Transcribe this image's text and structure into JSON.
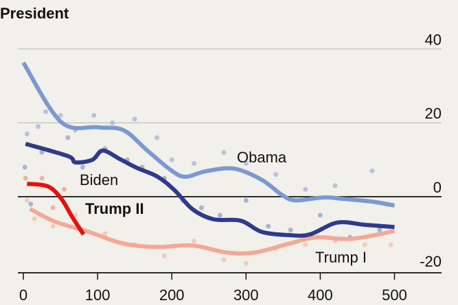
{
  "chart_data": {
    "type": "line",
    "title": "President",
    "xlabel": "",
    "ylabel": "",
    "xlim": [
      0,
      550
    ],
    "ylim": [
      -20,
      40
    ],
    "x_ticks": [
      "0",
      "100",
      "200",
      "300",
      "400",
      "500"
    ],
    "y_ticks": [
      "40",
      "20",
      "0",
      "-20"
    ],
    "grid": true,
    "series": [
      {
        "name": "Obama",
        "label": "Obama",
        "color": "#7b98d0",
        "dot_color": "#aab6dc",
        "x": [
          0,
          51,
          100,
          135,
          167,
          200,
          219,
          246,
          284,
          321,
          349,
          367,
          404,
          432,
          469,
          500
        ],
        "y": [
          36.3,
          20.2,
          18.8,
          18,
          12.5,
          7,
          5.4,
          6.9,
          7.6,
          4.6,
          0.4,
          -1,
          -0.2,
          -0.6,
          -1.3,
          -2.4
        ],
        "points": [
          [
            5,
            17
          ],
          [
            20,
            19
          ],
          [
            30,
            23
          ],
          [
            50,
            22
          ],
          [
            70,
            18
          ],
          [
            95,
            22
          ],
          [
            120,
            20
          ],
          [
            150,
            21
          ],
          [
            180,
            16
          ],
          [
            200,
            10
          ],
          [
            230,
            9
          ],
          [
            270,
            12
          ],
          [
            300,
            9
          ],
          [
            340,
            6
          ],
          [
            380,
            2
          ],
          [
            420,
            3
          ],
          [
            470,
            7
          ],
          [
            490,
            -2
          ]
        ]
      },
      {
        "name": "Biden",
        "label": "Biden",
        "color": "#2e3a8c",
        "dot_color": "#9aa3d0",
        "x": [
          3,
          60,
          70,
          93,
          107,
          130,
          153,
          181,
          204,
          228,
          256,
          293,
          321,
          358,
          386,
          423,
          460,
          500
        ],
        "y": [
          14.3,
          11,
          9.3,
          10,
          12.5,
          10.2,
          7.8,
          5.4,
          1.7,
          -3.4,
          -6.1,
          -6.5,
          -9.5,
          -10.4,
          -10.2,
          -7,
          -7.6,
          -8.2
        ],
        "points": [
          [
            2,
            8
          ],
          [
            10,
            -2
          ],
          [
            25,
            12
          ],
          [
            60,
            16
          ],
          [
            80,
            8
          ],
          [
            110,
            13
          ],
          [
            140,
            10
          ],
          [
            160,
            8
          ],
          [
            190,
            5
          ],
          [
            215,
            -1
          ],
          [
            240,
            -3
          ],
          [
            265,
            -5
          ],
          [
            300,
            -1
          ],
          [
            330,
            -8
          ],
          [
            360,
            -9
          ],
          [
            400,
            -5
          ],
          [
            440,
            -11
          ],
          [
            480,
            -9
          ]
        ]
      },
      {
        "name": "Trump I",
        "label": "Trump I",
        "color": "#f4a896",
        "dot_color": "#f3c3b4",
        "x": [
          9,
          42,
          88,
          135,
          181,
          228,
          274,
          312,
          358,
          395,
          442,
          500
        ],
        "y": [
          -3.3,
          -6.7,
          -9.5,
          -12.7,
          -13.6,
          -13.2,
          -15.1,
          -15.1,
          -12.7,
          -11,
          -11.4,
          -9.3
        ],
        "points": [
          [
            5,
            -1
          ],
          [
            15,
            -6
          ],
          [
            40,
            -8
          ],
          [
            70,
            -5
          ],
          [
            110,
            -10
          ],
          [
            150,
            -13
          ],
          [
            190,
            -16
          ],
          [
            230,
            -12
          ],
          [
            270,
            -17
          ],
          [
            300,
            -18
          ],
          [
            340,
            -14
          ],
          [
            380,
            -13
          ],
          [
            420,
            -12
          ],
          [
            460,
            -13
          ],
          [
            495,
            -13
          ]
        ]
      },
      {
        "name": "Trump II",
        "label": "Trump II",
        "color": "#e3120b",
        "dot_color": "#eea58d",
        "x": [
          5,
          33,
          51,
          65,
          81
        ],
        "y": [
          3.5,
          2.8,
          -0.5,
          -5.2,
          -10.2
        ],
        "points": [
          [
            3,
            5
          ],
          [
            25,
            5
          ],
          [
            55,
            2
          ],
          [
            40,
            -3
          ]
        ]
      }
    ]
  }
}
